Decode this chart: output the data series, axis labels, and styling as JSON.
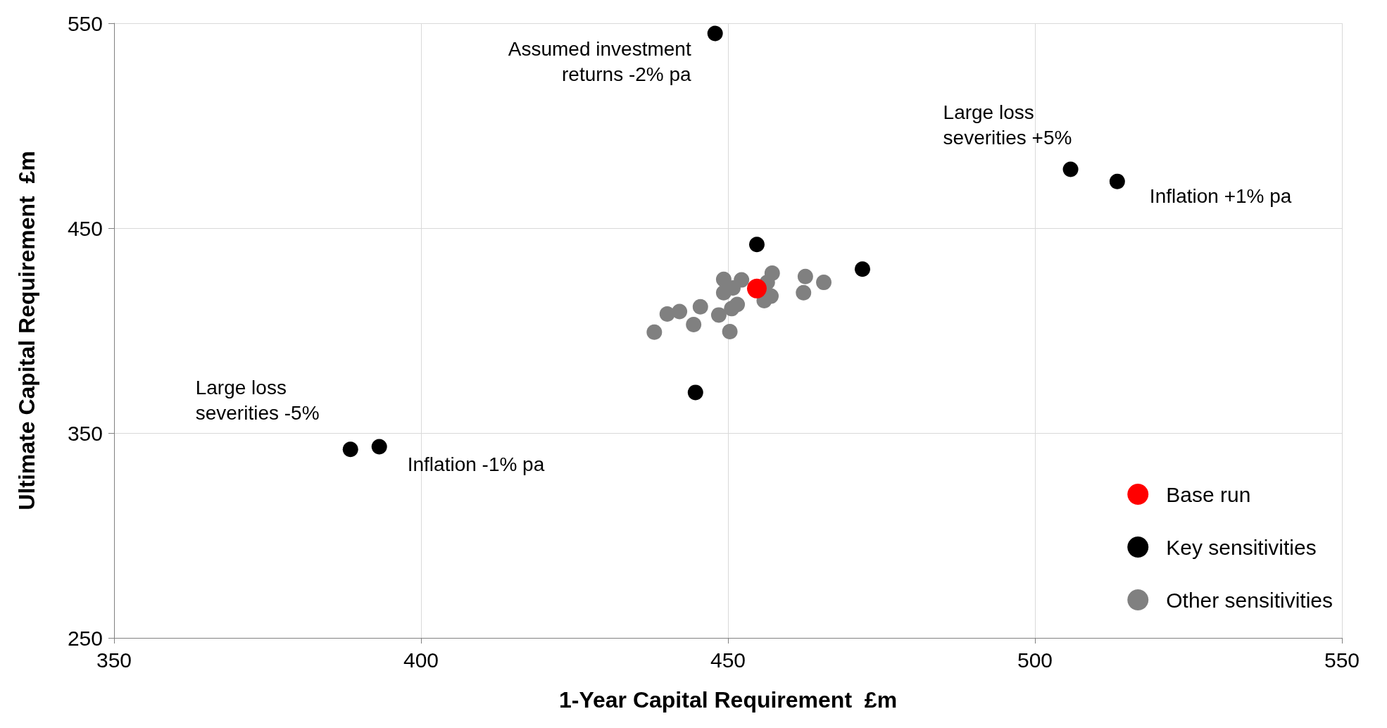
{
  "chart_data": {
    "type": "scatter",
    "xlabel": "1-Year Capital Requirement  £m",
    "ylabel": "Ultimate Capital Requirement  £m",
    "xlim": [
      350,
      550
    ],
    "xticks": [
      350,
      400,
      450,
      500,
      550
    ],
    "ylim": [
      250,
      550
    ],
    "yticks": [
      250,
      350,
      450,
      550
    ],
    "grid": true,
    "legend": "bottom right",
    "marker": "circle",
    "series": [
      {
        "name": "Base run",
        "color": "#ff0000",
        "x": [
          454.7
        ],
        "values": [
          420.5
        ]
      },
      {
        "name": "Key sensitivities",
        "color": "#000000",
        "x": [
          447.9,
          505.8,
          513.4,
          454.7,
          471.9,
          444.7,
          388.5,
          393.2
        ],
        "values": [
          545,
          478.7,
          472.8,
          442,
          430,
          369.8,
          342,
          343.3
        ]
      },
      {
        "name": "Other sensitivities",
        "color": "#808080",
        "x": [
          438.0,
          440.1,
          442.1,
          444.4,
          445.5,
          448.5,
          450.3,
          449.3,
          449.3,
          450.8,
          452.2,
          450.6,
          451.5,
          453.8,
          457.2,
          457.0,
          455.9,
          456.4,
          462.6,
          462.3,
          465.3,
          465.6
        ],
        "values": [
          399.2,
          408.1,
          409.3,
          402.9,
          411.6,
          407.6,
          399.5,
          425.0,
          418.5,
          420.8,
          424.7,
          410.7,
          412.7,
          null,
          428.0,
          416.8,
          414.6,
          423.5,
          426.4,
          418.5,
          null,
          423.5
        ]
      }
    ],
    "annotations": [
      {
        "text": "Assumed investment\nreturns -2% pa",
        "x": 447.9,
        "y": 545
      },
      {
        "text": "Large loss\nseverities +5%",
        "x": 505.8,
        "y": 478.7
      },
      {
        "text": "Inflation +1% pa",
        "x": 513.4,
        "y": 472.8
      },
      {
        "text": "Large loss\nseverities -5%",
        "x": 388.5,
        "y": 342
      },
      {
        "text": "Inflation -1% pa",
        "x": 393.2,
        "y": 343.3
      }
    ]
  }
}
